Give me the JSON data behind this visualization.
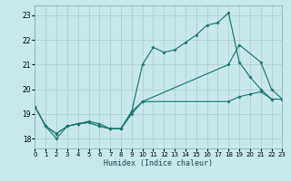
{
  "xlabel": "Humidex (Indice chaleur)",
  "bg_color": "#c8e8ec",
  "grid_color": "#aacccc",
  "line_color": "#1a7a6e",
  "xlim": [
    0,
    23
  ],
  "ylim": [
    17.6,
    23.4
  ],
  "xticks": [
    0,
    1,
    2,
    3,
    4,
    5,
    6,
    7,
    8,
    9,
    10,
    11,
    12,
    13,
    14,
    15,
    16,
    17,
    18,
    19,
    20,
    21,
    22,
    23
  ],
  "yticks": [
    18,
    19,
    20,
    21,
    22,
    23
  ],
  "lines": [
    {
      "x": [
        0,
        1,
        2,
        3,
        4,
        5,
        6,
        7,
        8,
        9,
        10,
        11,
        12,
        13,
        14,
        15,
        16,
        17,
        18,
        19,
        20,
        21,
        22
      ],
      "y": [
        19.3,
        18.5,
        18.0,
        18.5,
        18.6,
        18.65,
        18.5,
        18.4,
        18.4,
        19.1,
        21.0,
        21.7,
        21.5,
        21.6,
        21.9,
        22.2,
        22.6,
        22.7,
        23.1,
        21.1,
        20.5,
        20.0,
        19.6
      ]
    },
    {
      "x": [
        0,
        1,
        2,
        3,
        4,
        5,
        6,
        7,
        8,
        9,
        10,
        18,
        19,
        21,
        22,
        23
      ],
      "y": [
        19.3,
        18.5,
        18.2,
        18.5,
        18.6,
        18.65,
        18.5,
        18.4,
        18.4,
        19.1,
        19.5,
        21.0,
        21.8,
        21.1,
        20.0,
        19.6
      ]
    },
    {
      "x": [
        0,
        1,
        2,
        3,
        4,
        5,
        6,
        7,
        8,
        9,
        10,
        18,
        19,
        20,
        21,
        22,
        23
      ],
      "y": [
        19.3,
        18.5,
        18.2,
        18.5,
        18.6,
        18.7,
        18.6,
        18.4,
        18.4,
        19.0,
        19.5,
        19.5,
        19.7,
        19.8,
        19.9,
        19.6,
        19.6
      ]
    }
  ]
}
